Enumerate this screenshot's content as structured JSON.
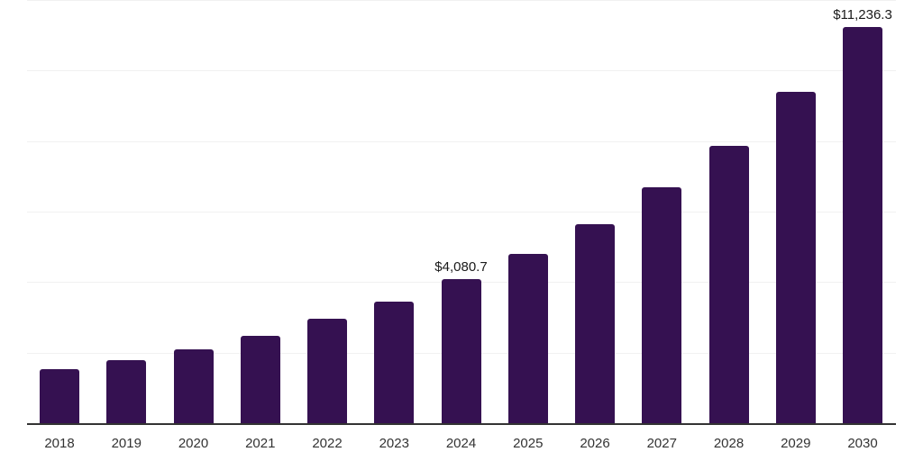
{
  "chart": {
    "background": "#ffffff",
    "bar_color": "#351151",
    "gridline_color": "#f1f1f1",
    "axis_color": "#333333",
    "value_label_color": "#1a1a1a",
    "tick_label_color": "#333333"
  },
  "chart_data": {
    "type": "bar",
    "title": "",
    "xlabel": "",
    "ylabel": "",
    "categories": [
      "2018",
      "2019",
      "2020",
      "2021",
      "2022",
      "2023",
      "2024",
      "2025",
      "2026",
      "2027",
      "2028",
      "2029",
      "2030"
    ],
    "values": [
      1540,
      1790,
      2085,
      2485,
      2960,
      3455,
      4080.7,
      4790,
      5640,
      6685,
      7870,
      9400,
      11236.3
    ],
    "data_labels": [
      null,
      null,
      null,
      null,
      null,
      null,
      "$4,080.7",
      null,
      null,
      null,
      null,
      null,
      "$11,236.3"
    ],
    "ylim": [
      0,
      12000
    ],
    "gridline_values": [
      2000,
      4000,
      6000,
      8000,
      10000,
      12000
    ],
    "grid": "horizontal",
    "legend": "none"
  }
}
